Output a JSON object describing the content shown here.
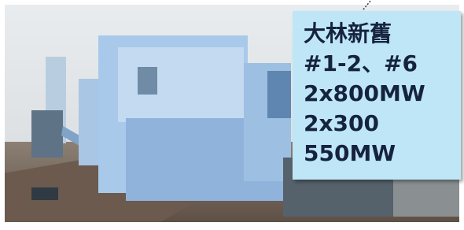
{
  "callout": {
    "lines": [
      "大林新舊",
      "#1-2、#6",
      "2x800MW",
      "2x300",
      "550MW"
    ]
  }
}
